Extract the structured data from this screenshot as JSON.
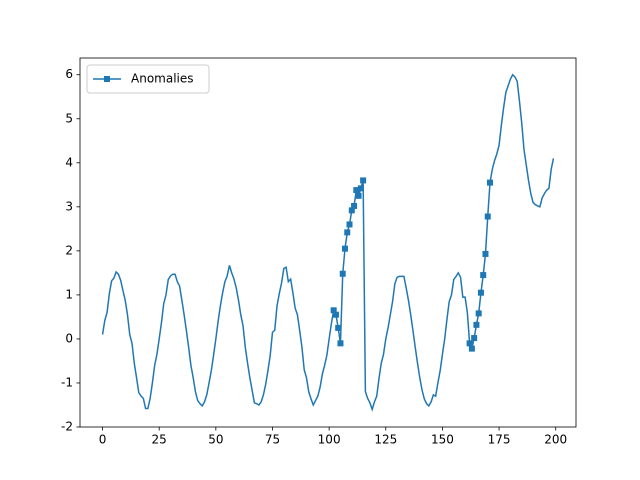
{
  "chart_data": {
    "type": "line",
    "x": [
      0,
      1,
      2,
      3,
      4,
      5,
      6,
      7,
      8,
      9,
      10,
      11,
      12,
      13,
      14,
      15,
      16,
      17,
      18,
      19,
      20,
      21,
      22,
      23,
      24,
      25,
      26,
      27,
      28,
      29,
      30,
      31,
      32,
      33,
      34,
      35,
      36,
      37,
      38,
      39,
      40,
      41,
      42,
      43,
      44,
      45,
      46,
      47,
      48,
      49,
      50,
      51,
      52,
      53,
      54,
      55,
      56,
      57,
      58,
      59,
      60,
      61,
      62,
      63,
      64,
      65,
      66,
      67,
      68,
      69,
      70,
      71,
      72,
      73,
      74,
      75,
      76,
      77,
      78,
      79,
      80,
      81,
      82,
      83,
      84,
      85,
      86,
      87,
      88,
      89,
      90,
      91,
      92,
      93,
      94,
      95,
      96,
      97,
      98,
      99,
      100,
      101,
      102,
      103,
      104,
      105,
      106,
      107,
      108,
      109,
      110,
      111,
      112,
      113,
      114,
      115,
      116,
      117,
      118,
      119,
      120,
      121,
      122,
      123,
      124,
      125,
      126,
      127,
      128,
      129,
      130,
      131,
      132,
      133,
      134,
      135,
      136,
      137,
      138,
      139,
      140,
      141,
      142,
      143,
      144,
      145,
      146,
      147,
      148,
      149,
      150,
      151,
      152,
      153,
      154,
      155,
      156,
      157,
      158,
      159,
      160,
      161,
      162,
      163,
      164,
      165,
      166,
      167,
      168,
      169,
      170,
      171,
      172,
      173,
      174,
      175,
      176,
      177,
      178,
      179,
      180,
      181,
      182,
      183,
      184,
      185,
      186,
      187,
      188,
      189,
      190,
      191,
      192,
      193,
      194,
      195,
      196,
      197,
      198,
      199
    ],
    "series": [
      {
        "name": "Anomalies",
        "color": "#1f77b4",
        "marker": "square",
        "markevery": [
          102,
          103,
          104,
          105,
          106,
          107,
          108,
          109,
          110,
          111,
          112,
          113,
          114,
          115,
          162,
          163,
          164,
          165,
          166,
          167,
          168,
          169,
          170,
          171
        ],
        "values": [
          0.1,
          0.42,
          0.6,
          1.03,
          1.32,
          1.38,
          1.52,
          1.47,
          1.33,
          1.1,
          0.88,
          0.55,
          0.1,
          -0.1,
          -0.55,
          -0.88,
          -1.22,
          -1.3,
          -1.35,
          -1.58,
          -1.58,
          -1.35,
          -1.0,
          -0.6,
          -0.35,
          0.0,
          0.37,
          0.8,
          1.0,
          1.35,
          1.43,
          1.47,
          1.47,
          1.3,
          1.2,
          0.88,
          0.55,
          0.19,
          -0.19,
          -0.6,
          -0.88,
          -1.2,
          -1.4,
          -1.47,
          -1.52,
          -1.43,
          -1.27,
          -1.0,
          -0.72,
          -0.37,
          0.0,
          0.4,
          0.75,
          1.05,
          1.3,
          1.43,
          1.67,
          1.5,
          1.36,
          1.16,
          0.88,
          0.55,
          0.3,
          -0.19,
          -0.55,
          -0.88,
          -1.16,
          -1.45,
          -1.47,
          -1.5,
          -1.43,
          -1.27,
          -1.03,
          -0.72,
          -0.37,
          0.15,
          0.2,
          0.75,
          1.03,
          1.27,
          1.6,
          1.63,
          1.3,
          1.36,
          1.05,
          0.7,
          0.55,
          0.19,
          -0.19,
          -0.7,
          -0.88,
          -1.2,
          -1.36,
          -1.5,
          -1.4,
          -1.3,
          -1.1,
          -0.8,
          -0.6,
          -0.37,
          0.0,
          0.35,
          0.65,
          0.55,
          0.25,
          -0.1,
          1.48,
          2.05,
          2.42,
          2.6,
          2.92,
          3.02,
          3.38,
          3.25,
          3.42,
          3.6,
          -1.2,
          -1.35,
          -1.45,
          -1.6,
          -1.43,
          -1.3,
          -0.9,
          -0.55,
          -0.35,
          0.0,
          0.25,
          0.55,
          0.85,
          1.25,
          1.4,
          1.42,
          1.42,
          1.42,
          1.16,
          0.88,
          0.55,
          0.19,
          -0.19,
          -0.55,
          -0.88,
          -1.16,
          -1.36,
          -1.47,
          -1.52,
          -1.43,
          -1.27,
          -1.3,
          -1.0,
          -0.72,
          -0.35,
          0.0,
          0.45,
          0.85,
          1.0,
          1.35,
          1.42,
          1.5,
          1.4,
          0.95,
          0.95,
          0.6,
          -0.1,
          -0.22,
          0.02,
          0.32,
          0.58,
          1.05,
          1.45,
          1.93,
          2.78,
          3.55,
          3.85,
          4.05,
          4.2,
          4.4,
          4.85,
          5.25,
          5.6,
          5.75,
          5.9,
          6.0,
          5.95,
          5.85,
          5.4,
          4.9,
          4.3,
          3.95,
          3.6,
          3.3,
          3.1,
          3.05,
          3.02,
          3.0,
          3.2,
          3.3,
          3.38,
          3.42,
          3.85,
          4.1
        ]
      }
    ],
    "xlim": [
      -9.95,
      208.95
    ],
    "ylim": [
      -2.0,
      6.38
    ],
    "xticks": [
      0,
      25,
      50,
      75,
      100,
      125,
      150,
      175,
      200
    ],
    "yticks": [
      -2,
      -1,
      0,
      1,
      2,
      3,
      4,
      5,
      6
    ],
    "legend": "upper left"
  }
}
